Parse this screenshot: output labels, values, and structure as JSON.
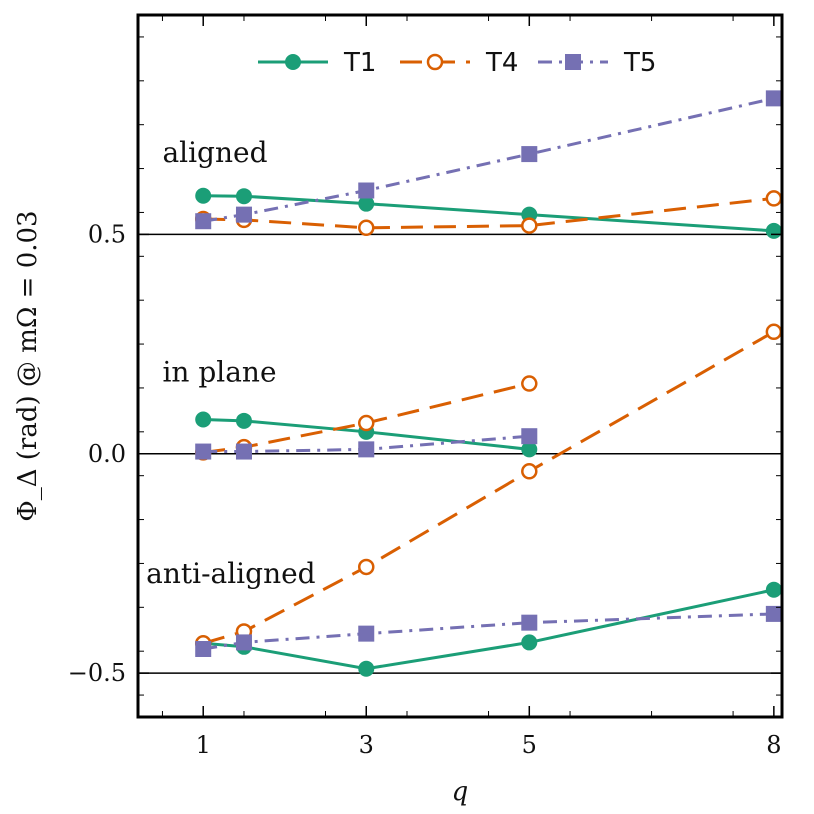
{
  "chart_data": {
    "type": "line",
    "xlabel": "q",
    "ylabel": "Φ_Δ (rad) @ mΩ = 0.03",
    "xlim": [
      0.2,
      8.1
    ],
    "ylim": [
      -0.6,
      1.0
    ],
    "xticks": [
      1,
      3,
      5,
      8
    ],
    "yticks": [
      -0.5,
      0.0,
      0.5
    ],
    "xtick_labels": [
      "1",
      "3",
      "5",
      "8"
    ],
    "ytick_labels": [
      "−0.5",
      "0.0",
      "0.5"
    ],
    "hlines": [
      -0.5,
      0.0,
      0.5
    ],
    "legend_position": "top-center",
    "annotations": [
      {
        "text": "aligned",
        "x": 0.5,
        "y": 0.665
      },
      {
        "text": "in plane",
        "x": 0.5,
        "y": 0.165
      },
      {
        "text": "anti-aligned",
        "x": 0.3,
        "y": -0.295
      }
    ],
    "groups": [
      "aligned",
      "in plane",
      "anti-aligned"
    ],
    "series": [
      {
        "name": "T1",
        "color": "#1b9e77",
        "linestyle": "solid",
        "marker": "filled-circle",
        "segments": [
          {
            "group": "aligned",
            "x": [
              1,
              1.5,
              3,
              5,
              8
            ],
            "y": [
              0.588,
              0.587,
              0.57,
              0.545,
              0.508
            ]
          },
          {
            "group": "in plane",
            "x": [
              1,
              1.5,
              3,
              5
            ],
            "y": [
              0.078,
              0.075,
              0.05,
              0.01
            ]
          },
          {
            "group": "anti-aligned",
            "x": [
              1,
              1.5,
              3,
              5,
              8
            ],
            "y": [
              -0.432,
              -0.44,
              -0.49,
              -0.43,
              -0.31
            ]
          }
        ]
      },
      {
        "name": "T4",
        "color": "#d95f02",
        "linestyle": "dashed",
        "marker": "open-circle",
        "segments": [
          {
            "group": "aligned",
            "x": [
              1,
              1.5,
              3,
              5,
              8
            ],
            "y": [
              0.535,
              0.533,
              0.515,
              0.52,
              0.582
            ]
          },
          {
            "group": "in plane",
            "x": [
              1,
              1.5,
              3,
              5
            ],
            "y": [
              0.003,
              0.015,
              0.07,
              0.16
            ]
          },
          {
            "group": "anti-aligned",
            "x": [
              1,
              1.5,
              3,
              5,
              8
            ],
            "y": [
              -0.432,
              -0.405,
              -0.258,
              -0.04,
              0.278
            ]
          }
        ]
      },
      {
        "name": "T5",
        "color": "#7570b3",
        "linestyle": "dashdot",
        "marker": "filled-square",
        "segments": [
          {
            "group": "aligned",
            "x": [
              1,
              1.5,
              3,
              5,
              8
            ],
            "y": [
              0.53,
              0.545,
              0.6,
              0.683,
              0.81
            ]
          },
          {
            "group": "in plane",
            "x": [
              1,
              1.5,
              3,
              5
            ],
            "y": [
              0.005,
              0.005,
              0.01,
              0.04
            ]
          },
          {
            "group": "anti-aligned",
            "x": [
              1,
              1.5,
              3,
              5,
              8
            ],
            "y": [
              -0.445,
              -0.43,
              -0.41,
              -0.385,
              -0.365
            ]
          }
        ]
      }
    ]
  }
}
